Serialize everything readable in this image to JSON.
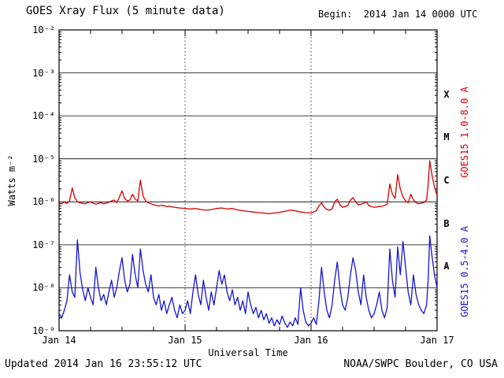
{
  "header": {
    "begin_label": "Begin:  2014 Jan 14 0000 UTC"
  },
  "footer": {
    "updated": "Updated 2014 Jan 16 23:55:12 UTC",
    "source": "NOAA/SWPC Boulder, CO USA"
  },
  "chart_data": {
    "type": "line",
    "title": "GOES Xray Flux (5 minute data)",
    "xlabel": "Universal Time",
    "ylabel": "Watts m⁻²",
    "x_axis": {
      "start": "2014 Jan 14 0000 UTC",
      "unit": "hours",
      "lim": [
        0,
        72
      ],
      "tick_hours": [
        0,
        24,
        48,
        72
      ],
      "tick_labels": [
        "Jan 14",
        "Jan 15",
        "Jan 16",
        "Jan 17"
      ],
      "minor_tick_hours": 6
    },
    "y_axis": {
      "scale": "log",
      "lim": [
        1e-09,
        0.01
      ],
      "exponent_range": [
        -9,
        -2
      ],
      "tick_exponents": [
        -2,
        -3,
        -4,
        -5,
        -6,
        -7,
        -8,
        -9
      ],
      "tick_labels": [
        "10⁻²",
        "10⁻³",
        "10⁻⁴",
        "10⁻⁵",
        "10⁻⁶",
        "10⁻⁷",
        "10⁻⁸",
        "10⁻⁹"
      ]
    },
    "flare_class_labels": [
      {
        "label": "X",
        "y_exponent": -3.5
      },
      {
        "label": "M",
        "y_exponent": -4.5
      },
      {
        "label": "C",
        "y_exponent": -5.5
      },
      {
        "label": "B",
        "y_exponent": -6.5
      },
      {
        "label": "A",
        "y_exponent": -7.5
      }
    ],
    "grid": {
      "horizontal": "solid black line at each decade",
      "vertical": "dotted black line at each day boundary"
    },
    "series": [
      {
        "name": "GOES15 1.0-8.0 A",
        "color": "#d40000",
        "points": [
          [
            0,
            9.5e-07
          ],
          [
            0.5,
            9e-07
          ],
          [
            1,
            1e-06
          ],
          [
            1.5,
            9.2e-07
          ],
          [
            2,
            1.05e-06
          ],
          [
            2.5,
            2.1e-06
          ],
          [
            3,
            1.25e-06
          ],
          [
            3.5,
            1e-06
          ],
          [
            4,
            9.5e-07
          ],
          [
            4.5,
            9.2e-07
          ],
          [
            5,
            9e-07
          ],
          [
            5.5,
            9.6e-07
          ],
          [
            6,
            1e-06
          ],
          [
            6.5,
            9.3e-07
          ],
          [
            7,
            8.8e-07
          ],
          [
            7.5,
            9.2e-07
          ],
          [
            8,
            9.6e-07
          ],
          [
            8.5,
            9e-07
          ],
          [
            9,
            9.3e-07
          ],
          [
            9.5,
            9.8e-07
          ],
          [
            10,
            1.05e-06
          ],
          [
            10.5,
            1.1e-06
          ],
          [
            11,
            9.6e-07
          ],
          [
            11.5,
            1.3e-06
          ],
          [
            12,
            1.8e-06
          ],
          [
            12.5,
            1.2e-06
          ],
          [
            13,
            1.05e-06
          ],
          [
            13.5,
            1.1e-06
          ],
          [
            14,
            1.5e-06
          ],
          [
            14.5,
            1.15e-06
          ],
          [
            15,
            1.05e-06
          ],
          [
            15.5,
            3.2e-06
          ],
          [
            16,
            1.35e-06
          ],
          [
            16.5,
            1.05e-06
          ],
          [
            17,
            9.5e-07
          ],
          [
            17.5,
            9e-07
          ],
          [
            18,
            8.6e-07
          ],
          [
            18.5,
            8.3e-07
          ],
          [
            19,
            8e-07
          ],
          [
            19.5,
            8.3e-07
          ],
          [
            20,
            8.1e-07
          ],
          [
            20.5,
            7.8e-07
          ],
          [
            21,
            7.9e-07
          ],
          [
            21.5,
            7.6e-07
          ],
          [
            22,
            7.5e-07
          ],
          [
            22.5,
            7.3e-07
          ],
          [
            23,
            7.2e-07
          ],
          [
            23.5,
            7.1e-07
          ],
          [
            24,
            7e-07
          ],
          [
            25,
            6.8e-07
          ],
          [
            26,
            7e-07
          ],
          [
            27,
            6.6e-07
          ],
          [
            28,
            6.4e-07
          ],
          [
            29,
            6.6e-07
          ],
          [
            30,
            7e-07
          ],
          [
            31,
            7.2e-07
          ],
          [
            32,
            6.8e-07
          ],
          [
            33,
            7e-07
          ],
          [
            34,
            6.5e-07
          ],
          [
            35,
            6.2e-07
          ],
          [
            36,
            6e-07
          ],
          [
            37,
            5.8e-07
          ],
          [
            38,
            5.6e-07
          ],
          [
            39,
            5.5e-07
          ],
          [
            40,
            5.3e-07
          ],
          [
            41,
            5.5e-07
          ],
          [
            42,
            5.7e-07
          ],
          [
            43,
            6e-07
          ],
          [
            44,
            6.4e-07
          ],
          [
            45,
            6.2e-07
          ],
          [
            46,
            5.8e-07
          ],
          [
            47,
            5.6e-07
          ],
          [
            48,
            5.5e-07
          ],
          [
            48.5,
            5.8e-07
          ],
          [
            49,
            6.2e-07
          ],
          [
            49.5,
            8e-07
          ],
          [
            50,
            9.5e-07
          ],
          [
            50.5,
            7.5e-07
          ],
          [
            51,
            6.6e-07
          ],
          [
            51.5,
            6.4e-07
          ],
          [
            52,
            6.8e-07
          ],
          [
            52.5,
            1e-06
          ],
          [
            53,
            1.15e-06
          ],
          [
            53.5,
            8.5e-07
          ],
          [
            54,
            7.5e-07
          ],
          [
            54.5,
            7.8e-07
          ],
          [
            55,
            8.2e-07
          ],
          [
            55.5,
            1.1e-06
          ],
          [
            56,
            1.25e-06
          ],
          [
            56.5,
            1e-06
          ],
          [
            57,
            8.5e-07
          ],
          [
            57.5,
            8.8e-07
          ],
          [
            58,
            9.2e-07
          ],
          [
            58.5,
            1e-06
          ],
          [
            59,
            8.2e-07
          ],
          [
            59.5,
            7.8e-07
          ],
          [
            60,
            7.5e-07
          ],
          [
            60.5,
            7.6e-07
          ],
          [
            61,
            7.8e-07
          ],
          [
            61.5,
            7.9e-07
          ],
          [
            62,
            8.2e-07
          ],
          [
            62.5,
            9e-07
          ],
          [
            63,
            2.6e-06
          ],
          [
            63.5,
            1.5e-06
          ],
          [
            64,
            1.2e-06
          ],
          [
            64.5,
            4.3e-06
          ],
          [
            65,
            2e-06
          ],
          [
            65.5,
            1.3e-06
          ],
          [
            66,
            1.05e-06
          ],
          [
            66.5,
            9.5e-07
          ],
          [
            67,
            1.5e-06
          ],
          [
            67.5,
            1.1e-06
          ],
          [
            68,
            9.5e-07
          ],
          [
            68.5,
            9e-07
          ],
          [
            69,
            9.3e-07
          ],
          [
            69.5,
            9.6e-07
          ],
          [
            70,
            1.1e-06
          ],
          [
            70.3,
            2.5e-06
          ],
          [
            70.6,
            9e-06
          ],
          [
            71,
            4.5e-06
          ],
          [
            71.5,
            2.2e-06
          ],
          [
            72,
            1.4e-06
          ]
        ]
      },
      {
        "name": "GOES15 0.5-4.0 A",
        "color": "#1414d4",
        "points": [
          [
            0,
            2.5e-09
          ],
          [
            0.5,
            2e-09
          ],
          [
            1,
            3e-09
          ],
          [
            1.5,
            5e-09
          ],
          [
            2,
            2e-08
          ],
          [
            2.5,
            8e-09
          ],
          [
            3,
            6e-09
          ],
          [
            3.5,
            1.3e-07
          ],
          [
            4,
            2.2e-08
          ],
          [
            4.5,
            9e-09
          ],
          [
            5,
            5e-09
          ],
          [
            5.5,
            1e-08
          ],
          [
            6,
            6e-09
          ],
          [
            6.5,
            4e-09
          ],
          [
            7,
            3e-08
          ],
          [
            7.5,
            1e-08
          ],
          [
            8,
            5e-09
          ],
          [
            8.5,
            7e-09
          ],
          [
            9,
            4e-09
          ],
          [
            9.5,
            8e-09
          ],
          [
            10,
            1.5e-08
          ],
          [
            10.5,
            6e-09
          ],
          [
            11,
            1e-08
          ],
          [
            11.5,
            2.5e-08
          ],
          [
            12,
            5e-08
          ],
          [
            12.5,
            1.5e-08
          ],
          [
            13,
            8e-09
          ],
          [
            13.5,
            1.2e-08
          ],
          [
            14,
            6e-08
          ],
          [
            14.5,
            2e-08
          ],
          [
            15,
            1e-08
          ],
          [
            15.5,
            8e-08
          ],
          [
            16,
            2.5e-08
          ],
          [
            16.5,
            1.2e-08
          ],
          [
            17,
            8e-09
          ],
          [
            17.5,
            2e-08
          ],
          [
            18,
            6e-09
          ],
          [
            18.5,
            4e-09
          ],
          [
            19,
            7e-09
          ],
          [
            19.5,
            3e-09
          ],
          [
            20,
            5e-09
          ],
          [
            20.5,
            2.5e-09
          ],
          [
            21,
            4e-09
          ],
          [
            21.5,
            6e-09
          ],
          [
            22,
            3e-09
          ],
          [
            22.5,
            2e-09
          ],
          [
            23,
            4e-09
          ],
          [
            23.5,
            2.5e-09
          ],
          [
            24,
            3e-09
          ],
          [
            24.5,
            5e-09
          ],
          [
            25,
            2.5e-09
          ],
          [
            25.5,
            8e-09
          ],
          [
            26,
            2e-08
          ],
          [
            26.5,
            7e-09
          ],
          [
            27,
            4e-09
          ],
          [
            27.5,
            1.5e-08
          ],
          [
            28,
            6e-09
          ],
          [
            28.5,
            3e-09
          ],
          [
            29,
            8e-09
          ],
          [
            29.5,
            4e-09
          ],
          [
            30,
            1e-08
          ],
          [
            30.5,
            2.5e-08
          ],
          [
            31,
            1.2e-08
          ],
          [
            31.5,
            2e-08
          ],
          [
            32,
            8e-09
          ],
          [
            32.5,
            5e-09
          ],
          [
            33,
            9e-09
          ],
          [
            33.5,
            4e-09
          ],
          [
            34,
            6e-09
          ],
          [
            34.5,
            3e-09
          ],
          [
            35,
            5e-09
          ],
          [
            35.5,
            2.5e-09
          ],
          [
            36,
            8e-09
          ],
          [
            36.5,
            4e-09
          ],
          [
            37,
            2.5e-09
          ],
          [
            37.5,
            3.5e-09
          ],
          [
            38,
            2e-09
          ],
          [
            38.5,
            3e-09
          ],
          [
            39,
            1.8e-09
          ],
          [
            39.5,
            2.5e-09
          ],
          [
            40,
            1.5e-09
          ],
          [
            40.5,
            2e-09
          ],
          [
            41,
            1.3e-09
          ],
          [
            41.5,
            1.8e-09
          ],
          [
            42,
            1.4e-09
          ],
          [
            42.5,
            2.2e-09
          ],
          [
            43,
            1.5e-09
          ],
          [
            43.5,
            1.2e-09
          ],
          [
            44,
            1.6e-09
          ],
          [
            44.5,
            1.3e-09
          ],
          [
            45,
            2e-09
          ],
          [
            45.5,
            1.4e-09
          ],
          [
            46,
            1e-08
          ],
          [
            46.5,
            3e-09
          ],
          [
            47,
            1.6e-09
          ],
          [
            47.5,
            1.3e-09
          ],
          [
            48,
            1.5e-09
          ],
          [
            48.5,
            2e-09
          ],
          [
            49,
            1.4e-09
          ],
          [
            49.5,
            5e-09
          ],
          [
            50,
            3e-08
          ],
          [
            50.5,
            8e-09
          ],
          [
            51,
            3e-09
          ],
          [
            51.5,
            2e-09
          ],
          [
            52,
            4e-09
          ],
          [
            52.5,
            1.5e-08
          ],
          [
            53,
            4e-08
          ],
          [
            53.5,
            1e-08
          ],
          [
            54,
            4e-09
          ],
          [
            54.5,
            3e-09
          ],
          [
            55,
            6e-09
          ],
          [
            55.5,
            2e-08
          ],
          [
            56,
            5e-08
          ],
          [
            56.5,
            2.5e-08
          ],
          [
            57,
            8e-09
          ],
          [
            57.5,
            4e-09
          ],
          [
            58,
            2e-08
          ],
          [
            58.5,
            6e-09
          ],
          [
            59,
            3e-09
          ],
          [
            59.5,
            2e-09
          ],
          [
            60,
            2.5e-09
          ],
          [
            60.5,
            4e-09
          ],
          [
            61,
            8e-09
          ],
          [
            61.5,
            3e-09
          ],
          [
            62,
            2e-09
          ],
          [
            62.5,
            3.5e-09
          ],
          [
            63,
            8e-08
          ],
          [
            63.5,
            1.5e-08
          ],
          [
            64,
            6e-09
          ],
          [
            64.5,
            9e-08
          ],
          [
            65,
            2e-08
          ],
          [
            65.5,
            1.2e-07
          ],
          [
            66,
            3e-08
          ],
          [
            66.5,
            8e-09
          ],
          [
            67,
            4e-09
          ],
          [
            67.5,
            2e-08
          ],
          [
            68,
            7e-09
          ],
          [
            68.5,
            4e-09
          ],
          [
            69,
            3e-09
          ],
          [
            69.5,
            2.5e-09
          ],
          [
            70,
            4e-09
          ],
          [
            70.3,
            1.5e-08
          ],
          [
            70.6,
            1.6e-07
          ],
          [
            71,
            6e-08
          ],
          [
            71.5,
            2e-08
          ],
          [
            72,
            1e-08
          ]
        ]
      }
    ]
  }
}
